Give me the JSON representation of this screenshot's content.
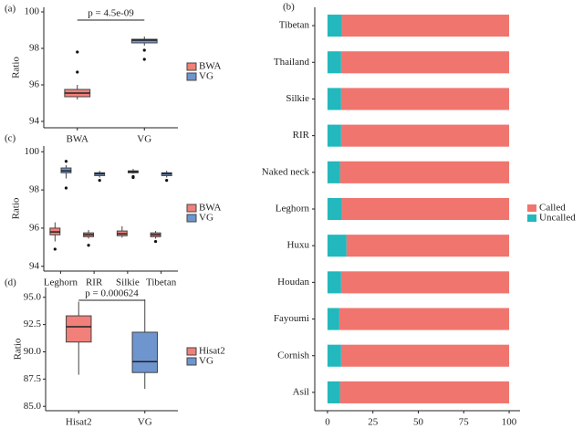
{
  "chart_data": [
    {
      "type": "box",
      "label": "(a)",
      "ylabel": "Ratio",
      "annotation": "p = 4.5e-09",
      "categories": [
        "BWA",
        "VG"
      ],
      "ylim": [
        93.65,
        100.25
      ],
      "yticks": [
        94,
        96,
        98,
        100
      ],
      "series": [
        {
          "name": "BWA",
          "color": "#f1807a",
          "values": [
            {
              "min": 95.2,
              "q1": 95.35,
              "median": 95.55,
              "q3": 95.75,
              "max": 96.0,
              "outliers": [
                96.7,
                97.8
              ]
            },
            null
          ]
        },
        {
          "name": "VG",
          "color": "#6f95cf",
          "values": [
            null,
            {
              "min": 98.15,
              "q1": 98.3,
              "median": 98.45,
              "q3": 98.5,
              "max": 98.65,
              "outliers": [
                97.9,
                97.4
              ]
            }
          ]
        }
      ]
    },
    {
      "type": "hbar",
      "label": "(b)",
      "categories": [
        "Tibetan",
        "Thailand",
        "Silkie",
        "RIR",
        "Naked neck",
        "Leghorn",
        "Huxu",
        "Houdan",
        "Fayoumi",
        "Cornish",
        "Asil"
      ],
      "xlim": [
        -7,
        106
      ],
      "xticks": [
        0,
        25,
        50,
        75,
        100
      ],
      "series": [
        {
          "name": "Called",
          "color": "#f0756e",
          "values": [
            92,
            92.5,
            92.5,
            92.5,
            93,
            92,
            89.5,
            92.5,
            93.5,
            92.5,
            93
          ]
        },
        {
          "name": "Uncalled",
          "color": "#22b8bd",
          "values": [
            8,
            7.5,
            7.5,
            7.5,
            7,
            8,
            10.5,
            7.5,
            6.5,
            7.5,
            7
          ]
        }
      ]
    },
    {
      "type": "box",
      "label": "(c)",
      "ylabel": "Ratio",
      "categories": [
        "Leghorn",
        "RIR",
        "Silkie",
        "Tibetan"
      ],
      "ylim": [
        93.75,
        100.3
      ],
      "yticks": [
        94,
        96,
        98,
        100
      ],
      "series": [
        {
          "name": "BWA",
          "color": "#f1807a",
          "values": [
            {
              "min": 95.3,
              "q1": 95.65,
              "median": 95.8,
              "q3": 96.0,
              "max": 96.3,
              "outliers": [
                94.9
              ]
            },
            {
              "min": 95.45,
              "q1": 95.55,
              "median": 95.65,
              "q3": 95.75,
              "max": 95.9,
              "outliers": [
                95.1
              ]
            },
            {
              "min": 95.5,
              "q1": 95.6,
              "median": 95.7,
              "q3": 95.85,
              "max": 96.1,
              "outliers": []
            },
            {
              "min": 95.45,
              "q1": 95.55,
              "median": 95.65,
              "q3": 95.75,
              "max": 95.85,
              "outliers": [
                95.3
              ]
            }
          ]
        },
        {
          "name": "VG",
          "color": "#6f95cf",
          "values": [
            {
              "min": 98.6,
              "q1": 98.9,
              "median": 99.0,
              "q3": 99.15,
              "max": 99.3,
              "outliers": [
                99.5,
                98.1
              ]
            },
            {
              "min": 98.65,
              "q1": 98.75,
              "median": 98.85,
              "q3": 98.9,
              "max": 99.0,
              "outliers": [
                98.5
              ]
            },
            {
              "min": 98.85,
              "q1": 98.9,
              "median": 98.95,
              "q3": 99.0,
              "max": 99.1,
              "outliers": [
                98.7,
                98.65
              ]
            },
            {
              "min": 98.65,
              "q1": 98.75,
              "median": 98.85,
              "q3": 98.9,
              "max": 99.0,
              "outliers": [
                98.5
              ]
            }
          ]
        }
      ]
    },
    {
      "type": "box",
      "label": "(d)",
      "ylabel": "Ratio",
      "annotation": "p = 0.000624",
      "categories": [
        "Hisat2",
        "VG"
      ],
      "ylim": [
        84.6,
        95.9
      ],
      "yticks": [
        {
          "value": 85,
          "label": "85.0"
        },
        87.5,
        {
          "value": 90,
          "label": "90.0"
        },
        92.5,
        {
          "value": 95,
          "label": "95.0"
        }
      ],
      "series": [
        {
          "name": "Hisat2",
          "color": "#f1807a",
          "values": [
            {
              "min": 87.9,
              "q1": 90.9,
              "median": 92.3,
              "q3": 93.3,
              "max": 94.6,
              "outliers": []
            },
            null
          ]
        },
        {
          "name": "VG",
          "color": "#6f95cf",
          "values": [
            null,
            {
              "min": 86.6,
              "q1": 88.1,
              "median": 89.1,
              "q3": 91.8,
              "max": 94.8,
              "outliers": []
            }
          ]
        }
      ]
    }
  ]
}
